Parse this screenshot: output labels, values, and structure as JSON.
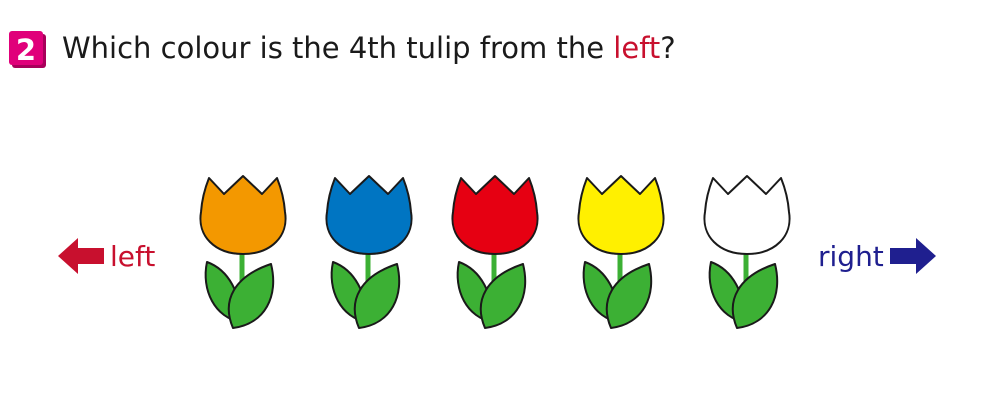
{
  "question": {
    "number": "2",
    "number_color": "#e0007a",
    "text_before": "Which colour is the 4th tulip from the ",
    "highlight": "left",
    "text_after": "?"
  },
  "directions": {
    "left_label": "left",
    "left_color": "#c8102e",
    "right_label": "right",
    "right_color": "#1f1f8f"
  },
  "tulips": [
    {
      "color": "#f39800"
    },
    {
      "color": "#0075c2"
    },
    {
      "color": "#e60012"
    },
    {
      "color": "#fff000"
    },
    {
      "color": "#ffffff"
    }
  ],
  "leaf_color": "#3cb034"
}
